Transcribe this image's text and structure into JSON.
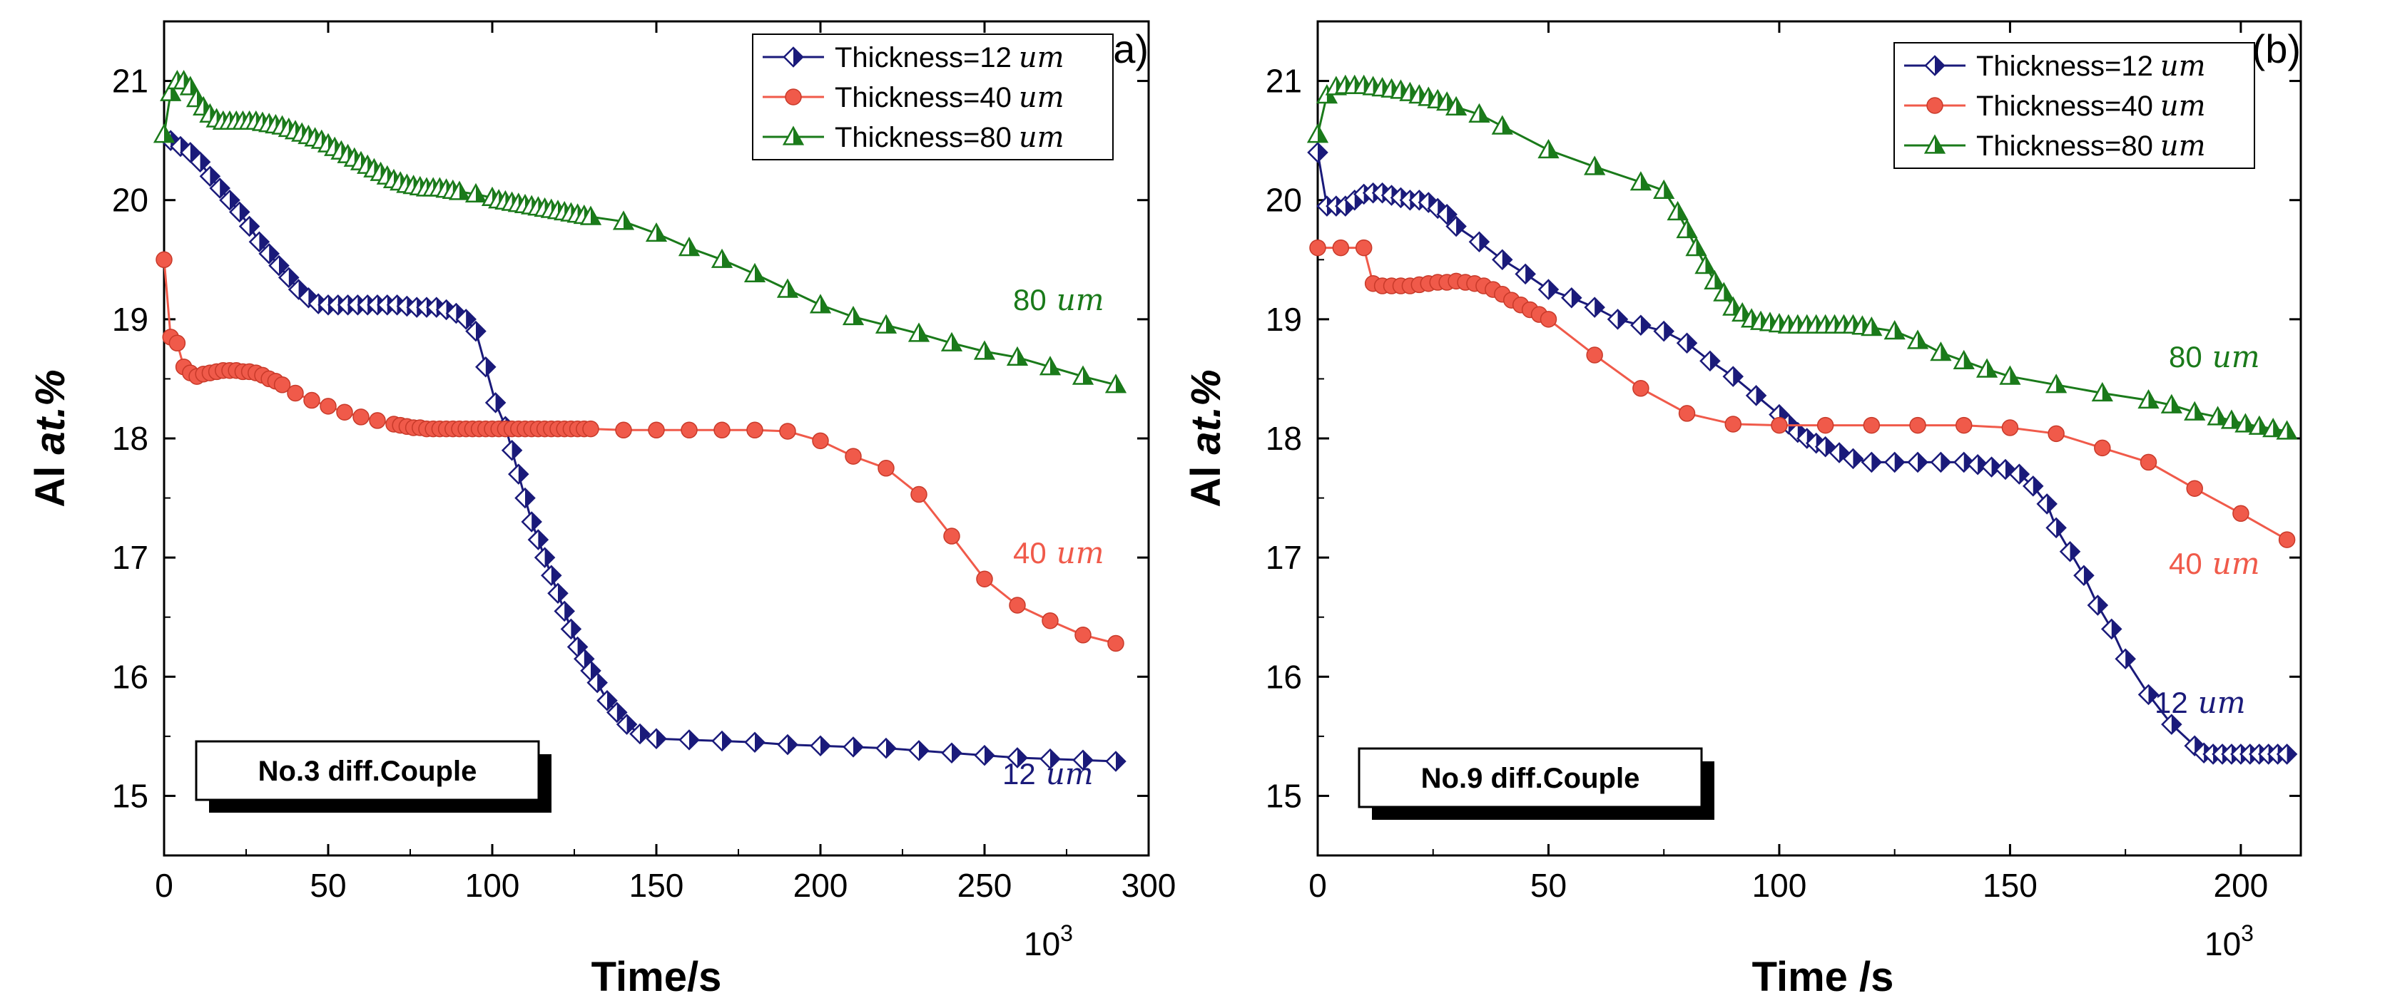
{
  "chart_data": [
    {
      "type": "line",
      "panel_label": "(a)",
      "annotation": "No.3 diff.Couple",
      "xlabel": "Time/s",
      "ylabel_prefix": "Al ",
      "ylabel_italic": "at.%",
      "x_multiplier_base": "10",
      "x_multiplier_exp": "3",
      "xlim": [
        0,
        300
      ],
      "ylim": [
        14.5,
        21.5
      ],
      "xticks": [
        0,
        50,
        100,
        150,
        200,
        250,
        300
      ],
      "yticks": [
        15,
        16,
        17,
        18,
        19,
        20,
        21
      ],
      "series": [
        {
          "name": "Thickness=12",
          "unit": "um",
          "end_label": "12",
          "color": "#1a1a7a",
          "marker": "diamond",
          "x": [
            2,
            5,
            8,
            11,
            14,
            17,
            20,
            23,
            26,
            29,
            32,
            35,
            38,
            41,
            44,
            47,
            50,
            53,
            56,
            59,
            62,
            65,
            68,
            71,
            74,
            77,
            80,
            83,
            86,
            89,
            92,
            95,
            98,
            101,
            104,
            106,
            108,
            110,
            112,
            114,
            116,
            118,
            120,
            122,
            124,
            126,
            128,
            130,
            132,
            135,
            138,
            141,
            145,
            150,
            160,
            170,
            180,
            190,
            200,
            210,
            220,
            230,
            240,
            250,
            260,
            270,
            280,
            290
          ],
          "y": [
            20.5,
            20.45,
            20.4,
            20.32,
            20.2,
            20.1,
            20.0,
            19.9,
            19.78,
            19.65,
            19.55,
            19.45,
            19.35,
            19.25,
            19.18,
            19.13,
            19.12,
            19.12,
            19.12,
            19.12,
            19.12,
            19.12,
            19.12,
            19.12,
            19.11,
            19.1,
            19.1,
            19.1,
            19.08,
            19.05,
            19.0,
            18.9,
            18.6,
            18.3,
            18.1,
            17.9,
            17.7,
            17.5,
            17.3,
            17.15,
            17.0,
            16.85,
            16.7,
            16.55,
            16.4,
            16.25,
            16.15,
            16.05,
            15.95,
            15.8,
            15.7,
            15.6,
            15.52,
            15.48,
            15.47,
            15.46,
            15.45,
            15.43,
            15.42,
            15.41,
            15.4,
            15.38,
            15.36,
            15.34,
            15.32,
            15.31,
            15.3,
            15.29
          ]
        },
        {
          "name": "Thickness=40",
          "unit": "um",
          "end_label": "40",
          "color": "#f05a4a",
          "marker": "circle",
          "x": [
            0,
            2,
            4,
            6,
            8,
            10,
            12,
            14,
            16,
            18,
            20,
            22,
            24,
            26,
            28,
            30,
            32,
            34,
            36,
            40,
            45,
            50,
            55,
            60,
            65,
            70,
            72,
            74,
            76,
            78,
            80,
            82,
            84,
            86,
            88,
            90,
            92,
            94,
            96,
            98,
            100,
            102,
            104,
            106,
            108,
            110,
            112,
            114,
            116,
            118,
            120,
            122,
            124,
            126,
            128,
            130,
            140,
            150,
            160,
            170,
            180,
            190,
            200,
            210,
            220,
            230,
            240,
            250,
            260,
            270,
            280,
            290
          ],
          "y": [
            19.5,
            18.85,
            18.8,
            18.6,
            18.55,
            18.52,
            18.54,
            18.55,
            18.56,
            18.57,
            18.57,
            18.57,
            18.56,
            18.56,
            18.55,
            18.53,
            18.5,
            18.48,
            18.45,
            18.38,
            18.32,
            18.27,
            18.22,
            18.18,
            18.15,
            18.12,
            18.11,
            18.1,
            18.09,
            18.09,
            18.08,
            18.08,
            18.08,
            18.08,
            18.08,
            18.08,
            18.08,
            18.08,
            18.08,
            18.08,
            18.08,
            18.08,
            18.08,
            18.08,
            18.08,
            18.08,
            18.08,
            18.08,
            18.08,
            18.08,
            18.08,
            18.08,
            18.08,
            18.08,
            18.08,
            18.08,
            18.07,
            18.07,
            18.07,
            18.07,
            18.07,
            18.06,
            17.98,
            17.85,
            17.75,
            17.53,
            17.18,
            16.82,
            16.6,
            16.47,
            16.35,
            16.28
          ]
        },
        {
          "name": "Thickness=80",
          "unit": "um",
          "end_label": "80",
          "color": "#1a7a1a",
          "marker": "triangle",
          "x": [
            0,
            2,
            4,
            6,
            8,
            10,
            12,
            14,
            16,
            18,
            20,
            22,
            24,
            26,
            28,
            30,
            32,
            34,
            36,
            38,
            40,
            42,
            44,
            46,
            48,
            50,
            52,
            54,
            56,
            58,
            60,
            62,
            64,
            66,
            68,
            70,
            72,
            74,
            76,
            78,
            80,
            82,
            84,
            86,
            88,
            90,
            95,
            100,
            102,
            104,
            106,
            108,
            110,
            112,
            114,
            116,
            118,
            120,
            122,
            124,
            126,
            128,
            130,
            140,
            150,
            160,
            170,
            180,
            190,
            200,
            210,
            220,
            230,
            240,
            250,
            260,
            270,
            280,
            290
          ],
          "y": [
            20.55,
            20.9,
            21.0,
            21.0,
            20.95,
            20.85,
            20.78,
            20.72,
            20.68,
            20.66,
            20.66,
            20.66,
            20.66,
            20.66,
            20.66,
            20.65,
            20.64,
            20.63,
            20.62,
            20.6,
            20.58,
            20.56,
            20.54,
            20.52,
            20.5,
            20.47,
            20.44,
            20.41,
            20.38,
            20.35,
            20.32,
            20.29,
            20.26,
            20.23,
            20.2,
            20.17,
            20.15,
            20.13,
            20.12,
            20.11,
            20.1,
            20.1,
            20.1,
            20.09,
            20.08,
            20.07,
            20.05,
            20.02,
            20.0,
            19.99,
            19.98,
            19.97,
            19.96,
            19.95,
            19.94,
            19.93,
            19.92,
            19.91,
            19.9,
            19.89,
            19.88,
            19.87,
            19.86,
            19.82,
            19.72,
            19.6,
            19.5,
            19.38,
            19.25,
            19.12,
            19.02,
            18.95,
            18.88,
            18.8,
            18.73,
            18.68,
            18.6,
            18.52,
            18.45
          ]
        }
      ]
    },
    {
      "type": "line",
      "panel_label": "(b)",
      "annotation": "No.9 diff.Couple",
      "xlabel": "Time /s",
      "ylabel_prefix": "Al ",
      "ylabel_italic": "at.%",
      "x_multiplier_base": "10",
      "x_multiplier_exp": "3",
      "xlim": [
        0,
        213
      ],
      "ylim": [
        14.5,
        21.5
      ],
      "xticks": [
        0,
        50,
        100,
        150,
        200
      ],
      "yticks": [
        15,
        16,
        17,
        18,
        19,
        20,
        21
      ],
      "series": [
        {
          "name": "Thickness=12",
          "unit": "um",
          "end_label": "12",
          "color": "#1a1a7a",
          "marker": "diamond",
          "x": [
            0,
            2,
            4,
            6,
            8,
            10,
            12,
            14,
            16,
            18,
            20,
            22,
            24,
            26,
            28,
            30,
            35,
            40,
            45,
            50,
            55,
            60,
            65,
            70,
            75,
            80,
            85,
            90,
            95,
            100,
            102,
            104,
            106,
            108,
            110,
            113,
            116,
            120,
            125,
            130,
            135,
            140,
            143,
            146,
            149,
            152,
            155,
            158,
            160,
            163,
            166,
            169,
            172,
            175,
            180,
            185,
            190,
            192,
            194,
            196,
            198,
            200,
            202,
            204,
            206,
            208,
            210
          ],
          "y": [
            20.4,
            19.95,
            19.95,
            19.95,
            20.0,
            20.05,
            20.06,
            20.06,
            20.04,
            20.02,
            20.0,
            20.0,
            19.98,
            19.93,
            19.88,
            19.78,
            19.65,
            19.5,
            19.38,
            19.25,
            19.18,
            19.1,
            19.0,
            18.95,
            18.9,
            18.8,
            18.65,
            18.52,
            18.36,
            18.2,
            18.12,
            18.05,
            18.0,
            17.96,
            17.93,
            17.88,
            17.83,
            17.8,
            17.8,
            17.8,
            17.8,
            17.8,
            17.78,
            17.76,
            17.74,
            17.7,
            17.6,
            17.45,
            17.25,
            17.05,
            16.85,
            16.6,
            16.4,
            16.15,
            15.85,
            15.6,
            15.42,
            15.36,
            15.35,
            15.35,
            15.35,
            15.35,
            15.35,
            15.35,
            15.35,
            15.35,
            15.35
          ]
        },
        {
          "name": "Thickness=40",
          "unit": "um",
          "end_label": "40",
          "color": "#f05a4a",
          "marker": "circle",
          "x": [
            0,
            5,
            10,
            12,
            14,
            16,
            18,
            20,
            22,
            24,
            26,
            28,
            30,
            32,
            34,
            36,
            38,
            40,
            42,
            44,
            46,
            48,
            50,
            60,
            70,
            80,
            90,
            100,
            110,
            120,
            130,
            140,
            150,
            160,
            170,
            180,
            190,
            200,
            210
          ],
          "y": [
            19.6,
            19.6,
            19.6,
            19.3,
            19.28,
            19.28,
            19.28,
            19.28,
            19.29,
            19.3,
            19.31,
            19.31,
            19.32,
            19.31,
            19.3,
            19.28,
            19.25,
            19.21,
            19.16,
            19.12,
            19.08,
            19.04,
            19.0,
            18.7,
            18.42,
            18.21,
            18.12,
            18.11,
            18.11,
            18.11,
            18.11,
            18.11,
            18.09,
            18.04,
            17.92,
            17.8,
            17.58,
            17.37,
            17.15
          ]
        },
        {
          "name": "Thickness=80",
          "unit": "um",
          "end_label": "80",
          "color": "#1a7a1a",
          "marker": "triangle",
          "x": [
            0,
            2,
            4,
            6,
            8,
            10,
            12,
            14,
            16,
            18,
            20,
            22,
            24,
            26,
            28,
            30,
            35,
            40,
            50,
            60,
            70,
            75,
            78,
            80,
            82,
            84,
            86,
            88,
            90,
            92,
            94,
            96,
            98,
            100,
            102,
            104,
            106,
            108,
            110,
            112,
            114,
            116,
            118,
            120,
            125,
            130,
            135,
            140,
            145,
            150,
            160,
            170,
            180,
            185,
            190,
            195,
            198,
            201,
            204,
            207,
            210
          ],
          "y": [
            20.55,
            20.88,
            20.95,
            20.96,
            20.96,
            20.96,
            20.95,
            20.94,
            20.93,
            20.92,
            20.9,
            20.88,
            20.86,
            20.84,
            20.82,
            20.78,
            20.72,
            20.62,
            20.42,
            20.28,
            20.15,
            20.08,
            19.9,
            19.75,
            19.6,
            19.45,
            19.32,
            19.22,
            19.1,
            19.05,
            19.0,
            18.98,
            18.97,
            18.96,
            18.95,
            18.95,
            18.95,
            18.95,
            18.95,
            18.95,
            18.95,
            18.95,
            18.94,
            18.93,
            18.9,
            18.82,
            18.72,
            18.65,
            18.58,
            18.52,
            18.45,
            18.38,
            18.32,
            18.28,
            18.22,
            18.18,
            18.15,
            18.12,
            18.1,
            18.08,
            18.06
          ]
        }
      ]
    }
  ]
}
